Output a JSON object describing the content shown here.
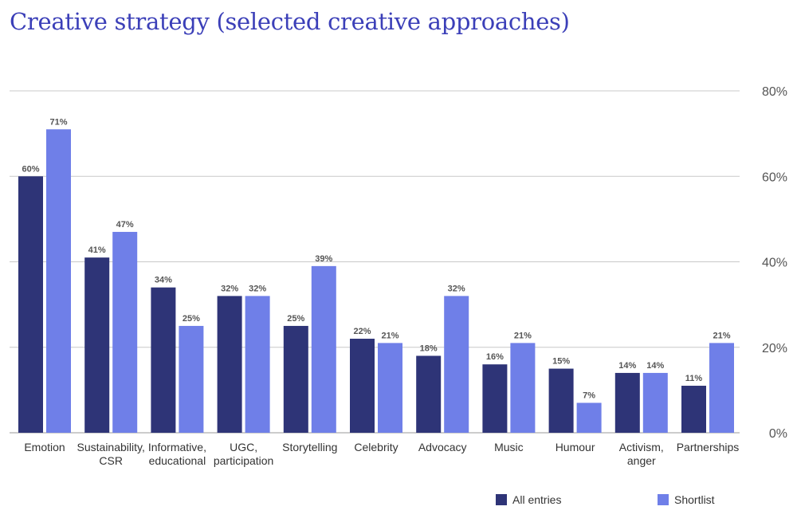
{
  "chart_data": {
    "type": "bar",
    "title": "Creative strategy (selected creative approaches)",
    "categories": [
      [
        "Emotion"
      ],
      [
        "Sustainability,",
        "CSR"
      ],
      [
        "Informative,",
        "educational"
      ],
      [
        "UGC,",
        "participation"
      ],
      [
        "Storytelling"
      ],
      [
        "Celebrity"
      ],
      [
        "Advocacy"
      ],
      [
        "Music"
      ],
      [
        "Humour"
      ],
      [
        "Activism,",
        "anger"
      ],
      [
        "Partnerships"
      ]
    ],
    "series": [
      {
        "name": "All entries",
        "color": "#2e3477",
        "values": [
          60,
          41,
          34,
          32,
          25,
          22,
          18,
          16,
          15,
          14,
          11
        ],
        "labels": [
          "60%",
          "41%",
          "34%",
          "32%",
          "25%",
          "22%",
          "18%",
          "16%",
          "15%",
          "14%",
          "11%"
        ]
      },
      {
        "name": "Shortlist",
        "color": "#6f7fe8",
        "values": [
          71,
          47,
          25,
          32,
          39,
          21,
          32,
          21,
          7,
          14,
          21
        ],
        "labels": [
          "71%",
          "47%",
          "25%",
          "32%",
          "39%",
          "21%",
          "32%",
          "21%",
          "7%",
          "14%",
          "21%"
        ]
      }
    ],
    "ylim": [
      0,
      80
    ],
    "yticks": [
      {
        "value": 0,
        "label": "0%"
      },
      {
        "value": 20,
        "label": "20%"
      },
      {
        "value": 40,
        "label": "40%"
      },
      {
        "value": 60,
        "label": "60%"
      },
      {
        "value": 80,
        "label": "80%"
      }
    ],
    "grid": true,
    "y_axis_side": "right",
    "legend_position": "bottom-right",
    "gridline_color": "#c8c8c8"
  }
}
